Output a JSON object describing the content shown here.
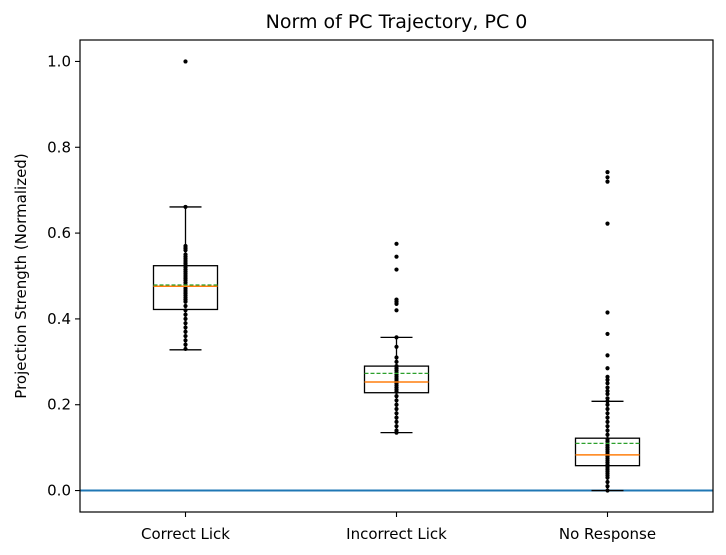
{
  "chart_data": {
    "type": "box",
    "title": "Norm of PC Trajectory, PC 0",
    "xlabel": "",
    "ylabel": "Projection Strength (Normalized)",
    "ylim": [
      -0.05,
      1.05
    ],
    "yticks": [
      0.0,
      0.2,
      0.4,
      0.6,
      0.8,
      1.0
    ],
    "ytick_labels": [
      "0.0",
      "0.2",
      "0.4",
      "0.6",
      "0.8",
      "1.0"
    ],
    "categories": [
      "Correct Lick",
      "Incorrect Lick",
      "No Response"
    ],
    "boxes": [
      {
        "name": "Correct Lick",
        "whisker_low": 0.328,
        "q1": 0.422,
        "median": 0.476,
        "mean": 0.479,
        "q3": 0.524,
        "whisker_high": 0.661,
        "points": [
          1.0,
          0.661,
          0.57,
          0.565,
          0.56,
          0.55,
          0.545,
          0.54,
          0.535,
          0.53,
          0.525,
          0.52,
          0.515,
          0.51,
          0.505,
          0.5,
          0.495,
          0.49,
          0.485,
          0.48,
          0.475,
          0.47,
          0.465,
          0.46,
          0.455,
          0.45,
          0.445,
          0.44,
          0.43,
          0.42,
          0.41,
          0.4,
          0.39,
          0.38,
          0.37,
          0.36,
          0.35,
          0.34,
          0.33
        ]
      },
      {
        "name": "Incorrect Lick",
        "whisker_low": 0.135,
        "q1": 0.228,
        "median": 0.253,
        "mean": 0.273,
        "q3": 0.29,
        "whisker_high": 0.357,
        "points": [
          0.575,
          0.545,
          0.515,
          0.445,
          0.44,
          0.435,
          0.42,
          0.357,
          0.335,
          0.31,
          0.3,
          0.29,
          0.285,
          0.28,
          0.275,
          0.27,
          0.265,
          0.26,
          0.255,
          0.25,
          0.245,
          0.24,
          0.235,
          0.23,
          0.22,
          0.21,
          0.2,
          0.19,
          0.18,
          0.17,
          0.16,
          0.15,
          0.14,
          0.135
        ]
      },
      {
        "name": "No Response",
        "whisker_low": 0.0,
        "q1": 0.058,
        "median": 0.083,
        "mean": 0.11,
        "q3": 0.122,
        "whisker_high": 0.208,
        "points": [
          0.742,
          0.73,
          0.72,
          0.622,
          0.415,
          0.365,
          0.315,
          0.285,
          0.265,
          0.258,
          0.25,
          0.24,
          0.232,
          0.225,
          0.215,
          0.208,
          0.2,
          0.19,
          0.18,
          0.17,
          0.16,
          0.15,
          0.14,
          0.13,
          0.12,
          0.115,
          0.11,
          0.105,
          0.1,
          0.095,
          0.09,
          0.085,
          0.08,
          0.075,
          0.07,
          0.065,
          0.06,
          0.055,
          0.05,
          0.045,
          0.04,
          0.035,
          0.03,
          0.02,
          0.01,
          0.0
        ]
      }
    ],
    "reference_line": {
      "y": 0.0,
      "color": "#1f77b4"
    },
    "colors": {
      "box": "#000000",
      "median": "#ff7f0e",
      "mean": "#2ca02c",
      "points": "#000000"
    },
    "grid": false,
    "legend": "none"
  }
}
